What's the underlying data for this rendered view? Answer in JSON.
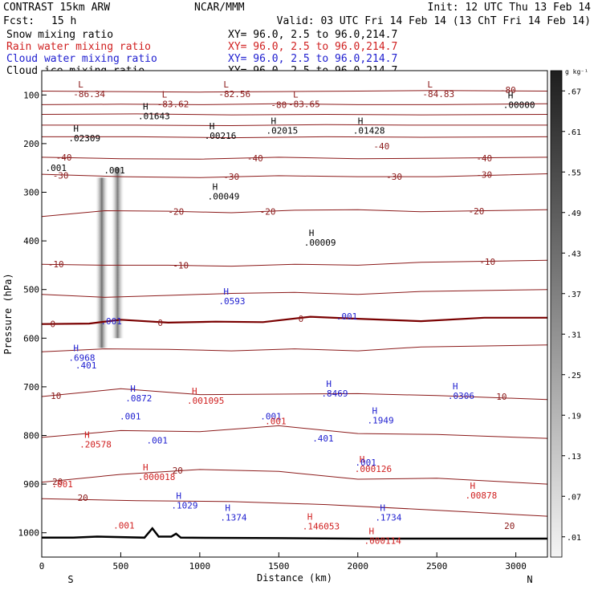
{
  "header": {
    "model": "CONTRAST 15km ARW",
    "org": "NCAR/MMM",
    "init": "Init: 12 UTC Thu 13 Feb 14",
    "fcst_label": "Fcst:",
    "fcst_value": "15 h",
    "valid": "Valid: 03 UTC Fri 14 Feb 14 (13 ChT Fri 14 Feb 14)"
  },
  "legend": [
    {
      "name": "Snow mixing ratio",
      "color": "#000000",
      "xy": "XY=  96.0,  2.5 to  96.0,214.7"
    },
    {
      "name": "Rain water mixing ratio",
      "color": "#d02020",
      "xy": "XY=  96.0,  2.5 to  96.0,214.7"
    },
    {
      "name": "Cloud water mixing ratio",
      "color": "#2020d0",
      "xy": "XY=  96.0,  2.5 to  96.0,214.7"
    },
    {
      "name": "Cloud ice mixing ratio",
      "color": "#000000",
      "xy": "XY=  96.0,  2.5 to  96.0,214.7"
    }
  ],
  "colorbar": {
    "unit": "g kg⁻¹",
    "ticks": [
      ".01",
      ".07",
      ".13",
      ".19",
      ".25",
      ".31",
      ".37",
      ".43",
      ".49",
      ".55",
      ".61",
      ".67"
    ]
  },
  "colors": {
    "temperature": "#8b1a1a",
    "zero_isotherm": "#7a0000",
    "rain": "#d02020",
    "cloud_water": "#2020d0",
    "terrain": "#000000"
  },
  "chart_data": {
    "type": "cross-section",
    "xlabel": "Distance (km)",
    "ylabel": "Pressure (hPa)",
    "xlim": [
      0,
      3200
    ],
    "ylim": [
      1050,
      50
    ],
    "x_ticks": [
      0,
      500,
      1000,
      1500,
      2000,
      2500,
      3000
    ],
    "y_ticks": [
      100,
      200,
      300,
      400,
      500,
      600,
      700,
      800,
      900,
      1000
    ],
    "x_end_labels": {
      "left": "S",
      "right": "N"
    },
    "isotherms": [
      {
        "value": -80,
        "points": [
          [
            0,
            92
          ],
          [
            500,
            93
          ],
          [
            1000,
            94
          ],
          [
            1500,
            93
          ],
          [
            2000,
            92
          ],
          [
            2500,
            91
          ],
          [
            3200,
            92
          ]
        ]
      },
      {
        "value": -80,
        "points": [
          [
            0,
            120
          ],
          [
            500,
            119
          ],
          [
            1000,
            120
          ],
          [
            1500,
            118
          ],
          [
            2000,
            120
          ],
          [
            2500,
            120
          ],
          [
            3200,
            118
          ]
        ]
      },
      {
        "value": -70,
        "points": [
          [
            0,
            140
          ],
          [
            600,
            139
          ],
          [
            1200,
            141
          ],
          [
            1800,
            140
          ],
          [
            2400,
            141
          ],
          [
            3200,
            140
          ]
        ]
      },
      {
        "value": -60,
        "points": [
          [
            0,
            162
          ],
          [
            600,
            162
          ],
          [
            1200,
            163
          ],
          [
            1800,
            161
          ],
          [
            2400,
            162
          ],
          [
            3200,
            162
          ]
        ]
      },
      {
        "value": -50,
        "points": [
          [
            0,
            186
          ],
          [
            600,
            186
          ],
          [
            1200,
            188
          ],
          [
            1800,
            186
          ],
          [
            2400,
            187
          ],
          [
            3200,
            186
          ]
        ]
      },
      {
        "value": -40,
        "points": [
          [
            0,
            228
          ],
          [
            500,
            231
          ],
          [
            1000,
            232
          ],
          [
            1500,
            228
          ],
          [
            2000,
            231
          ],
          [
            2500,
            230
          ],
          [
            3200,
            228
          ]
        ]
      },
      {
        "value": -30,
        "points": [
          [
            0,
            263
          ],
          [
            500,
            268
          ],
          [
            1000,
            270
          ],
          [
            1500,
            266
          ],
          [
            2000,
            268
          ],
          [
            2500,
            268
          ],
          [
            3200,
            262
          ]
        ]
      },
      {
        "value": -20,
        "points": [
          [
            0,
            350
          ],
          [
            400,
            338
          ],
          [
            800,
            339
          ],
          [
            1200,
            342
          ],
          [
            1600,
            337
          ],
          [
            2000,
            336
          ],
          [
            2400,
            340
          ],
          [
            3200,
            336
          ]
        ]
      },
      {
        "value": -10,
        "points": [
          [
            0,
            448
          ],
          [
            400,
            450
          ],
          [
            800,
            450
          ],
          [
            1200,
            452
          ],
          [
            1600,
            448
          ],
          [
            2000,
            450
          ],
          [
            2400,
            444
          ],
          [
            3200,
            440
          ]
        ]
      },
      {
        "value": -5,
        "points": [
          [
            0,
            510
          ],
          [
            400,
            516
          ],
          [
            800,
            512
          ],
          [
            1200,
            508
          ],
          [
            1600,
            506
          ],
          [
            2000,
            510
          ],
          [
            2400,
            504
          ],
          [
            3200,
            500
          ]
        ]
      },
      {
        "value": 0,
        "points": [
          [
            0,
            571
          ],
          [
            300,
            570
          ],
          [
            500,
            562
          ],
          [
            800,
            568
          ],
          [
            1100,
            566
          ],
          [
            1400,
            567
          ],
          [
            1700,
            556
          ],
          [
            2000,
            560
          ],
          [
            2400,
            565
          ],
          [
            2800,
            558
          ],
          [
            3200,
            558
          ]
        ]
      },
      {
        "value": 5,
        "points": [
          [
            0,
            628
          ],
          [
            400,
            622
          ],
          [
            800,
            623
          ],
          [
            1200,
            626
          ],
          [
            1600,
            622
          ],
          [
            2000,
            626
          ],
          [
            2400,
            618
          ],
          [
            3200,
            614
          ]
        ]
      },
      {
        "value": 10,
        "points": [
          [
            0,
            720
          ],
          [
            500,
            704
          ],
          [
            1000,
            716
          ],
          [
            1500,
            715
          ],
          [
            2000,
            714
          ],
          [
            2500,
            718
          ],
          [
            3200,
            726
          ]
        ]
      },
      {
        "value": 15,
        "points": [
          [
            0,
            804
          ],
          [
            500,
            790
          ],
          [
            1000,
            792
          ],
          [
            1500,
            780
          ],
          [
            2000,
            796
          ],
          [
            2500,
            798
          ],
          [
            3200,
            806
          ]
        ]
      },
      {
        "value": 20,
        "points": [
          [
            0,
            896
          ],
          [
            500,
            880
          ],
          [
            1000,
            870
          ],
          [
            1500,
            874
          ],
          [
            2000,
            890
          ],
          [
            2500,
            888
          ],
          [
            3200,
            900
          ]
        ]
      },
      {
        "value": 20,
        "points": [
          [
            0,
            930
          ],
          [
            600,
            934
          ],
          [
            1200,
            936
          ],
          [
            1800,
            942
          ],
          [
            2400,
            952
          ],
          [
            3200,
            966
          ]
        ]
      }
    ],
    "zero_isotherm_value": 0,
    "terrain": [
      [
        0,
        1010
      ],
      [
        200,
        1010
      ],
      [
        350,
        1008
      ],
      [
        650,
        1010
      ],
      [
        700,
        991
      ],
      [
        740,
        1008
      ],
      [
        820,
        1008
      ],
      [
        850,
        1002
      ],
      [
        880,
        1010
      ],
      [
        1500,
        1011
      ],
      [
        2000,
        1012
      ],
      [
        2500,
        1012
      ],
      [
        3200,
        1012
      ]
    ],
    "snow_shading": [
      {
        "x": 380,
        "p_top": 270,
        "p_bottom": 620,
        "max": 0.67
      },
      {
        "x": 480,
        "p_top": 250,
        "p_bottom": 600,
        "max": 0.55
      }
    ],
    "maxima_labels": [
      {
        "kind": "L",
        "x": 230,
        "p": 90,
        "value": "-86.34",
        "color": "#8b1a1a"
      },
      {
        "kind": "L",
        "x": 760,
        "p": 110,
        "value": "-83.62",
        "color": "#8b1a1a"
      },
      {
        "kind": "L",
        "x": 1150,
        "p": 90,
        "value": "-82.56",
        "color": "#8b1a1a"
      },
      {
        "kind": "L",
        "x": 1590,
        "p": 110,
        "value": "-83.65",
        "color": "#8b1a1a"
      },
      {
        "kind": "L",
        "x": 2440,
        "p": 90,
        "value": "-84.83",
        "color": "#8b1a1a"
      },
      {
        "kind": "H",
        "x": 640,
        "p": 135,
        "value": ".01643",
        "color": "#000000"
      },
      {
        "kind": "H",
        "x": 1060,
        "p": 175,
        "value": ".00216",
        "color": "#000000"
      },
      {
        "kind": "H",
        "x": 1450,
        "p": 165,
        "value": ".02015",
        "color": "#000000"
      },
      {
        "kind": "H",
        "x": 2000,
        "p": 165,
        "value": ".01428",
        "color": "#000000"
      },
      {
        "kind": "H",
        "x": 2950,
        "p": 112,
        "value": ".00000",
        "color": "#000000"
      },
      {
        "kind": "H",
        "x": 200,
        "p": 180,
        "value": ".02309",
        "color": "#000000"
      },
      {
        "kind": "H",
        "x": 1080,
        "p": 300,
        "value": ".00049",
        "color": "#000000"
      },
      {
        "kind": "H",
        "x": 1690,
        "p": 395,
        "value": ".00009",
        "color": "#000000"
      },
      {
        "kind": "H",
        "x": 1150,
        "p": 515,
        "value": ".0593",
        "color": "#2020d0"
      },
      {
        "kind": "H",
        "x": 200,
        "p": 632,
        "value": ".6968",
        "color": "#2020d0"
      },
      {
        "kind": "H",
        "x": 560,
        "p": 715,
        "value": ".0872",
        "color": "#2020d0"
      },
      {
        "kind": "H",
        "x": 1800,
        "p": 705,
        "value": ".8469",
        "color": "#2020d0"
      },
      {
        "kind": "H",
        "x": 2090,
        "p": 760,
        "value": ".1949",
        "color": "#2020d0"
      },
      {
        "kind": "H",
        "x": 2600,
        "p": 710,
        "value": ".0306",
        "color": "#2020d0"
      },
      {
        "kind": "H",
        "x": 850,
        "p": 935,
        "value": ".1029",
        "color": "#2020d0"
      },
      {
        "kind": "H",
        "x": 1160,
        "p": 960,
        "value": ".1374",
        "color": "#2020d0"
      },
      {
        "kind": "H",
        "x": 2140,
        "p": 960,
        "value": ".1734",
        "color": "#2020d0"
      },
      {
        "kind": "H",
        "x": 2710,
        "p": 915,
        "value": ".00878",
        "color": "#d02020"
      },
      {
        "kind": "H",
        "x": 950,
        "p": 720,
        "value": ".001095",
        "color": "#d02020"
      },
      {
        "kind": "H",
        "x": 270,
        "p": 810,
        "value": ".20578",
        "color": "#d02020"
      },
      {
        "kind": "H",
        "x": 640,
        "p": 877,
        "value": ".000018",
        "color": "#d02020"
      },
      {
        "kind": "H",
        "x": 2010,
        "p": 860,
        "value": ".000126",
        "color": "#d02020"
      },
      {
        "kind": "H",
        "x": 1680,
        "p": 978,
        "value": ".146053",
        "color": "#d02020"
      },
      {
        "kind": "H",
        "x": 2070,
        "p": 1008,
        "value": ".000114",
        "color": "#d02020"
      }
    ],
    "contour_labels": [
      {
        "x": 90,
        "p": 250,
        "value": ".001",
        "color": "#000000"
      },
      {
        "x": 460,
        "p": 255,
        "value": ".001",
        "color": "#000000"
      },
      {
        "x": 440,
        "p": 565,
        "value": ".001",
        "color": "#2020d0"
      },
      {
        "x": 1930,
        "p": 555,
        "value": ".001",
        "color": "#2020d0"
      },
      {
        "x": 280,
        "p": 656,
        "value": ".401",
        "color": "#2020d0"
      },
      {
        "x": 1780,
        "p": 806,
        "value": ".401",
        "color": "#2020d0"
      },
      {
        "x": 560,
        "p": 760,
        "value": ".001",
        "color": "#2020d0"
      },
      {
        "x": 730,
        "p": 810,
        "value": ".001",
        "color": "#2020d0"
      },
      {
        "x": 1450,
        "p": 760,
        "value": ".001",
        "color": "#2020d0"
      },
      {
        "x": 2050,
        "p": 855,
        "value": ".001",
        "color": "#2020d0"
      },
      {
        "x": 130,
        "p": 900,
        "value": ".001",
        "color": "#d02020"
      },
      {
        "x": 520,
        "p": 985,
        "value": ".001",
        "color": "#d02020"
      },
      {
        "x": 1480,
        "p": 770,
        "value": ".001",
        "color": "#d02020"
      },
      {
        "x": 2980,
        "p": 40,
        "value": "",
        "color": "#000000"
      }
    ],
    "isotherm_value_labels": [
      {
        "x": 2950,
        "p": 90,
        "value": "-80"
      },
      {
        "x": 1500,
        "p": 120,
        "value": "-80"
      },
      {
        "x": 2150,
        "p": 205,
        "value": "-40"
      },
      {
        "x": 2800,
        "p": 230,
        "value": "-40"
      },
      {
        "x": 1350,
        "p": 230,
        "value": "-40"
      },
      {
        "x": 140,
        "p": 228,
        "value": "-40"
      },
      {
        "x": 120,
        "p": 265,
        "value": "-30"
      },
      {
        "x": 1200,
        "p": 268,
        "value": "-30"
      },
      {
        "x": 2230,
        "p": 268,
        "value": "-30"
      },
      {
        "x": 2800,
        "p": 264,
        "value": "-30"
      },
      {
        "x": 850,
        "p": 340,
        "value": "-20"
      },
      {
        "x": 1430,
        "p": 340,
        "value": "-20"
      },
      {
        "x": 2750,
        "p": 339,
        "value": "-20"
      },
      {
        "x": 90,
        "p": 448,
        "value": "-10"
      },
      {
        "x": 880,
        "p": 450,
        "value": "-10"
      },
      {
        "x": 2820,
        "p": 443,
        "value": "-10"
      },
      {
        "x": 70,
        "p": 571,
        "value": "0"
      },
      {
        "x": 750,
        "p": 568,
        "value": "0"
      },
      {
        "x": 1640,
        "p": 560,
        "value": "0"
      },
      {
        "x": 90,
        "p": 718,
        "value": "10"
      },
      {
        "x": 2910,
        "p": 720,
        "value": "10"
      },
      {
        "x": 100,
        "p": 895,
        "value": "20"
      },
      {
        "x": 860,
        "p": 872,
        "value": "20"
      },
      {
        "x": 2960,
        "p": 986,
        "value": "20"
      },
      {
        "x": 260,
        "p": 928,
        "value": "20"
      }
    ]
  }
}
